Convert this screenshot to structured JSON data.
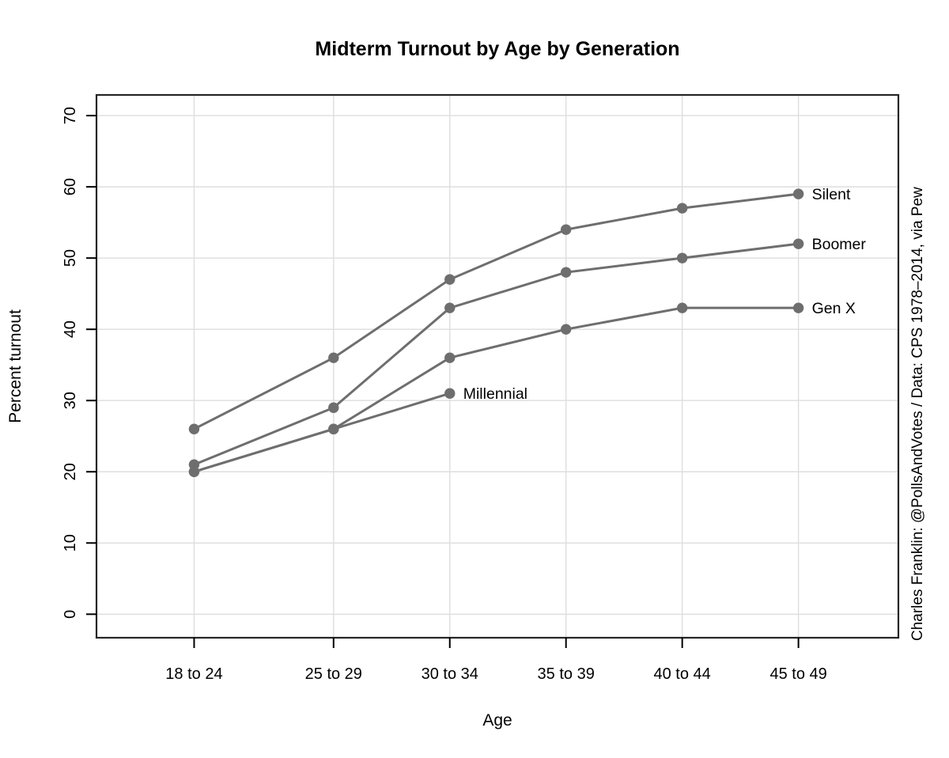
{
  "chart_data": {
    "type": "line",
    "title": "Midterm Turnout by Age by Generation",
    "xlabel": "Age",
    "ylabel": "Percent turnout",
    "credit": "Charles Franklin: @PollsAndVotes / Data: CPS 1978–2014, via Pew",
    "categories": [
      "18 to 24",
      "25 to 29",
      "30 to 34",
      "35 to 39",
      "40 to 44",
      "45 to 49"
    ],
    "x_midpoints": [
      21,
      27,
      32,
      37,
      42,
      47
    ],
    "xlim": [
      16.8,
      51.3
    ],
    "ylim": [
      -3.3,
      72.9
    ],
    "y_ticks": [
      0,
      10,
      20,
      30,
      40,
      50,
      60,
      70
    ],
    "grid": true,
    "legend_position": "end-of-line-labels",
    "series": [
      {
        "name": "Silent",
        "values": [
          26,
          36,
          47,
          54,
          57,
          59
        ]
      },
      {
        "name": "Boomer",
        "values": [
          21,
          29,
          43,
          48,
          50,
          52
        ]
      },
      {
        "name": "Gen X",
        "values": [
          20,
          26,
          36,
          40,
          43,
          43
        ]
      },
      {
        "name": "Millennial",
        "values": [
          20,
          26,
          31
        ]
      }
    ],
    "colors": {
      "series_line": "#6e6e6e",
      "point_fill": "#6e6e6e",
      "grid_line": "#dedede",
      "plot_border": "#262626",
      "tick": "#000000",
      "credit_text": "#1c1ca0",
      "background": "#ffffff"
    }
  }
}
